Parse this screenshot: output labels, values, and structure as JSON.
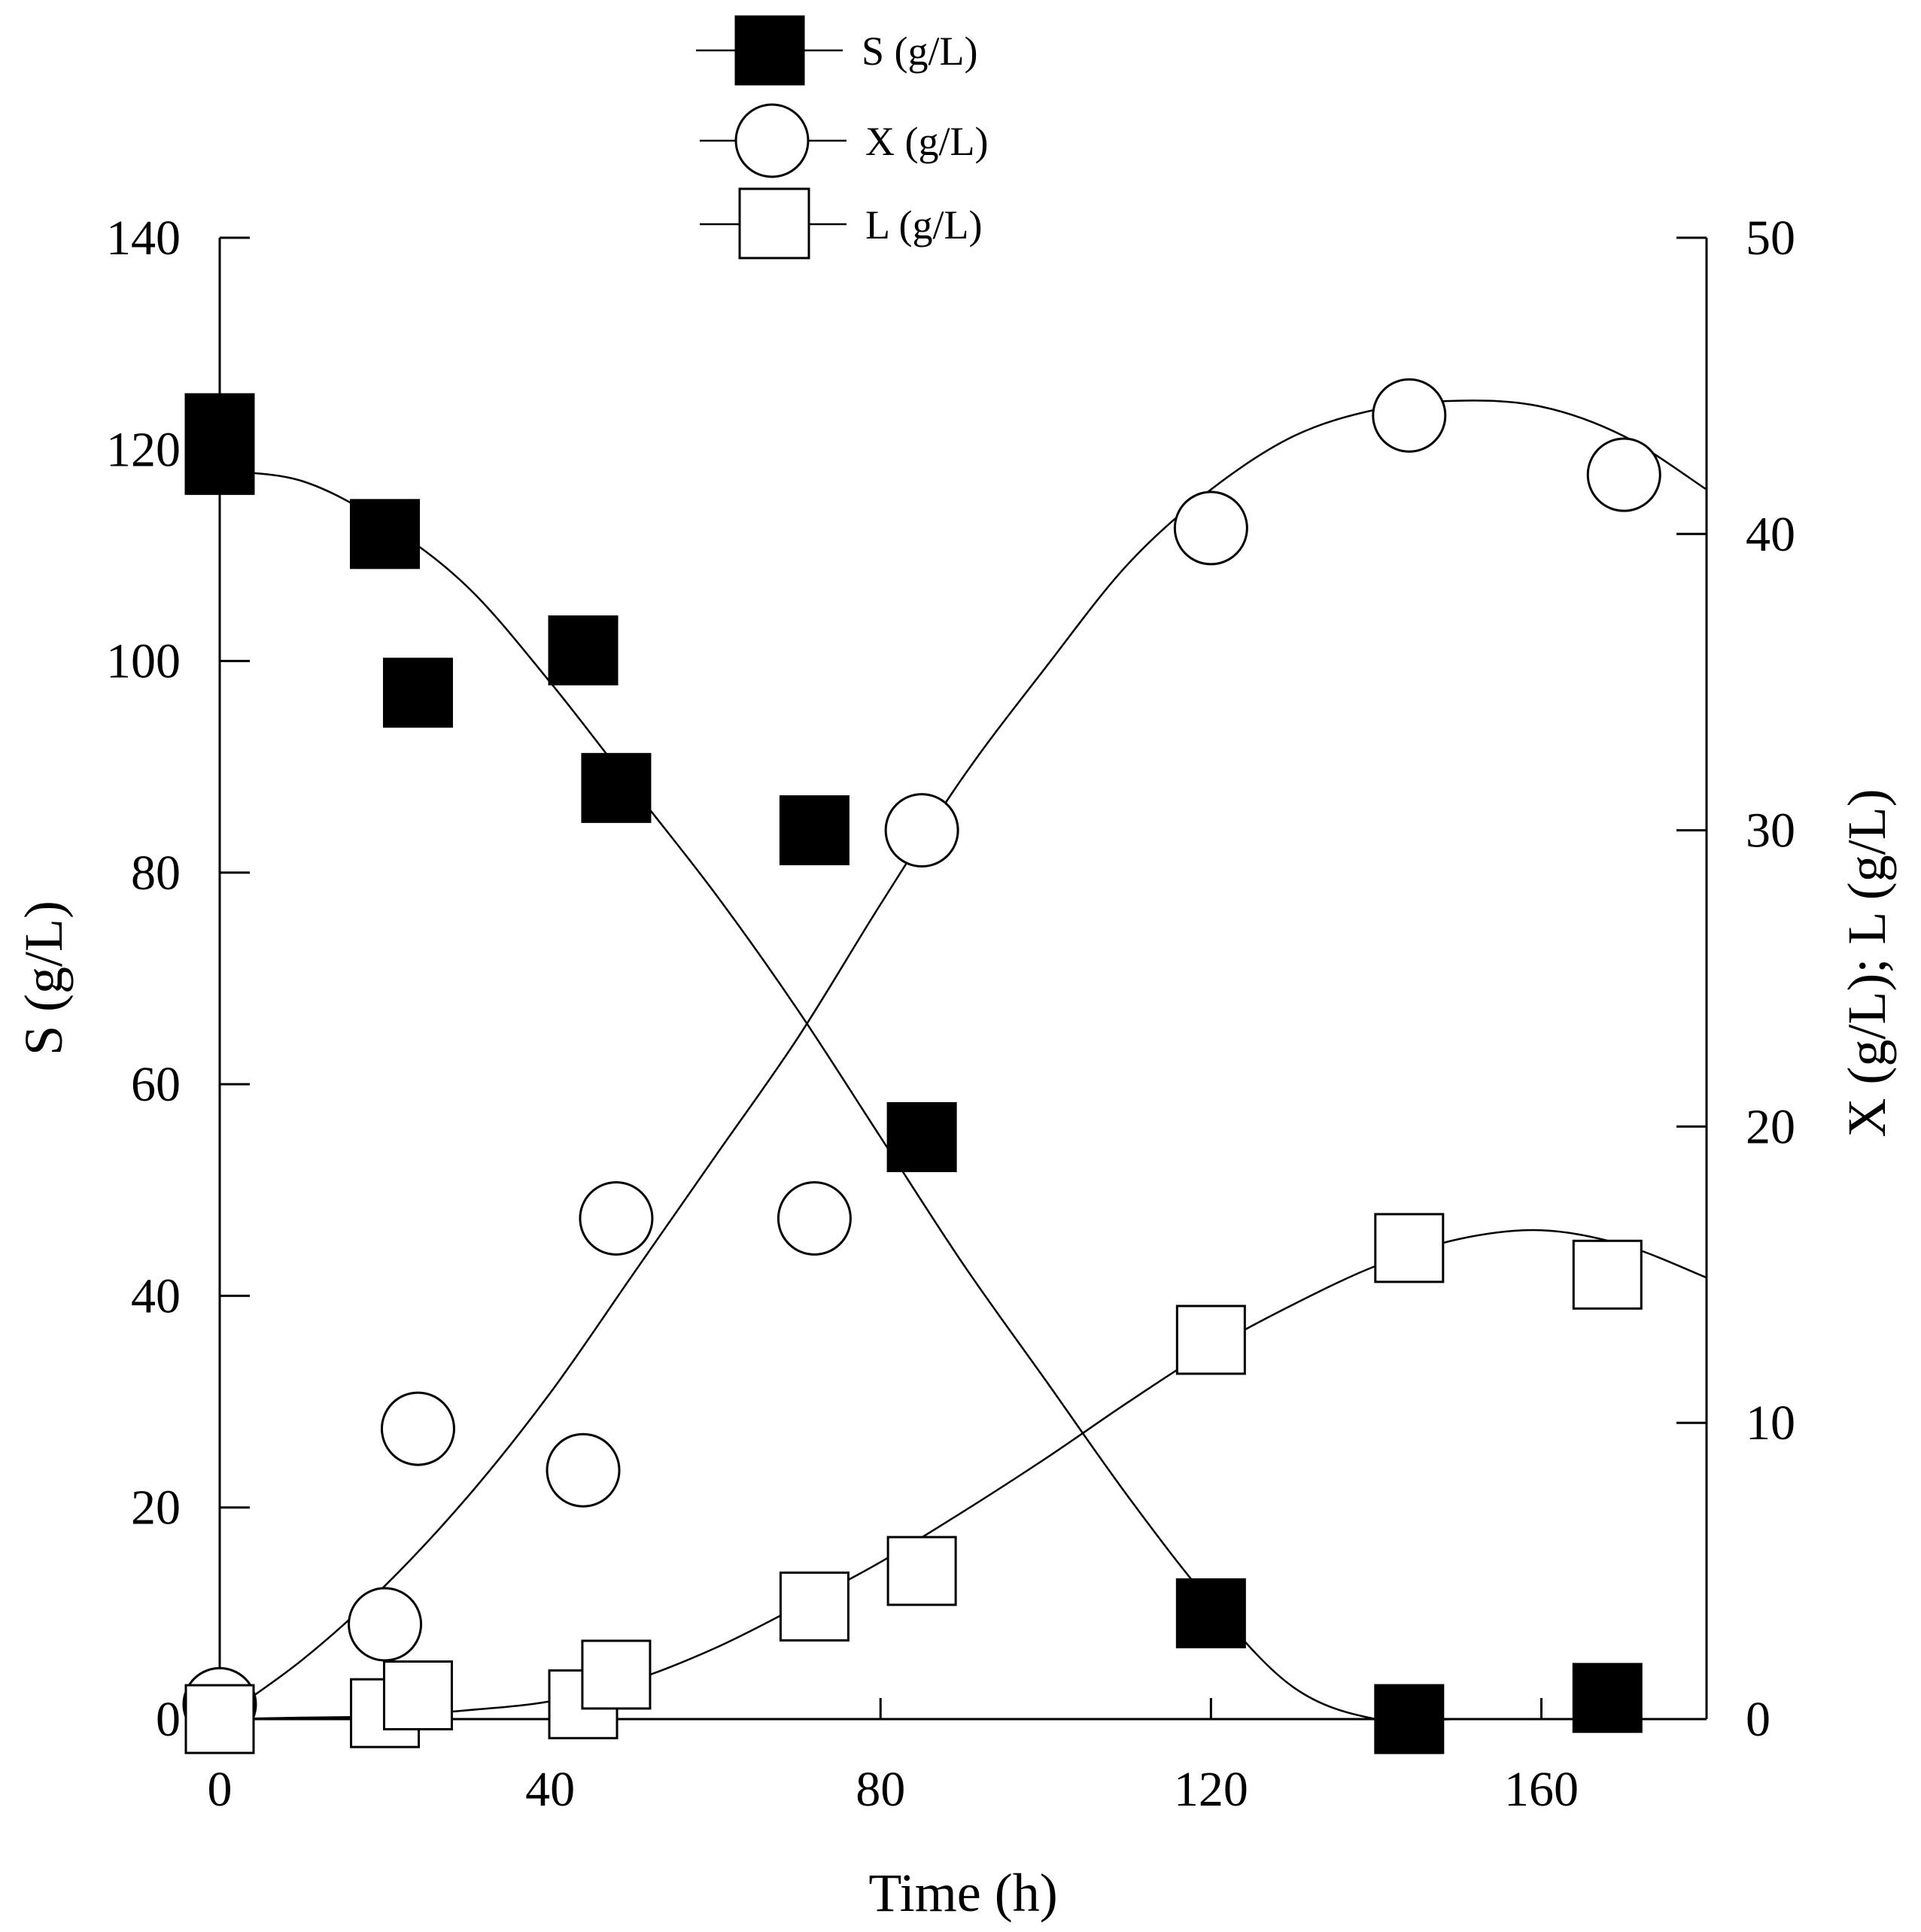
{
  "chart_data": {
    "type": "scatter",
    "title": "",
    "xlabel": "Time (h)",
    "ylabel_left": "S (g/L)",
    "ylabel_right": "X (g/L); L (g/L)",
    "xlim": [
      0,
      180
    ],
    "ylim_left": [
      0,
      140
    ],
    "ylim_right": [
      0,
      50
    ],
    "xticks": [
      0,
      40,
      80,
      120,
      160
    ],
    "yticks_left": [
      0,
      20,
      40,
      60,
      80,
      100,
      120,
      140
    ],
    "yticks_right": [
      0,
      10,
      20,
      30,
      40,
      50
    ],
    "legend_position": "top-center",
    "series": [
      {
        "name": "S (g/L)",
        "axis": "left",
        "marker": "filled-square",
        "x": [
          0,
          0,
          20,
          24,
          44,
          48,
          72,
          85,
          120,
          144,
          168
        ],
        "y": [
          119,
          122,
          112,
          97,
          101,
          88,
          84,
          55,
          10,
          0,
          2
        ],
        "fit_x": [
          0,
          10,
          20,
          30,
          40,
          50,
          60,
          70,
          80,
          90,
          100,
          110,
          120,
          130,
          140,
          150,
          160,
          170,
          180
        ],
        "fit_y": [
          118,
          117,
          113,
          107,
          98,
          88,
          78,
          67,
          55,
          43,
          32,
          21,
          11,
          3,
          0,
          0,
          0,
          0,
          0
        ]
      },
      {
        "name": "X (g/L)",
        "axis": "right",
        "marker": "open-circle",
        "x": [
          0,
          20,
          24,
          44,
          48,
          72,
          85,
          120,
          144,
          170
        ],
        "y": [
          0.5,
          3.2,
          9.8,
          8.4,
          16.9,
          16.9,
          30,
          40.2,
          44,
          42
        ],
        "fit_x": [
          0,
          10,
          20,
          30,
          40,
          50,
          60,
          70,
          80,
          90,
          100,
          110,
          120,
          130,
          140,
          150,
          160,
          170,
          180
        ],
        "fit_y": [
          0,
          2,
          4.5,
          7.5,
          11,
          15,
          19,
          23,
          27.5,
          31.8,
          35.5,
          39,
          41.5,
          43.3,
          44.2,
          44.5,
          44.3,
          43.3,
          41.5
        ]
      },
      {
        "name": "L (g/L)",
        "axis": "right",
        "marker": "open-square",
        "x": [
          0,
          20,
          24,
          44,
          48,
          72,
          85,
          120,
          144,
          168
        ],
        "y": [
          0,
          0.2,
          0.8,
          0.5,
          1.5,
          3.8,
          5,
          12.8,
          15.9,
          15
        ],
        "fit_x": [
          0,
          10,
          20,
          30,
          40,
          50,
          60,
          70,
          80,
          90,
          100,
          110,
          120,
          130,
          140,
          150,
          160,
          170,
          180
        ],
        "fit_y": [
          0,
          0.05,
          0.1,
          0.3,
          0.6,
          1.3,
          2.4,
          3.8,
          5.3,
          7,
          8.8,
          10.7,
          12.5,
          14,
          15.3,
          16.2,
          16.5,
          16,
          14.9
        ]
      }
    ]
  }
}
